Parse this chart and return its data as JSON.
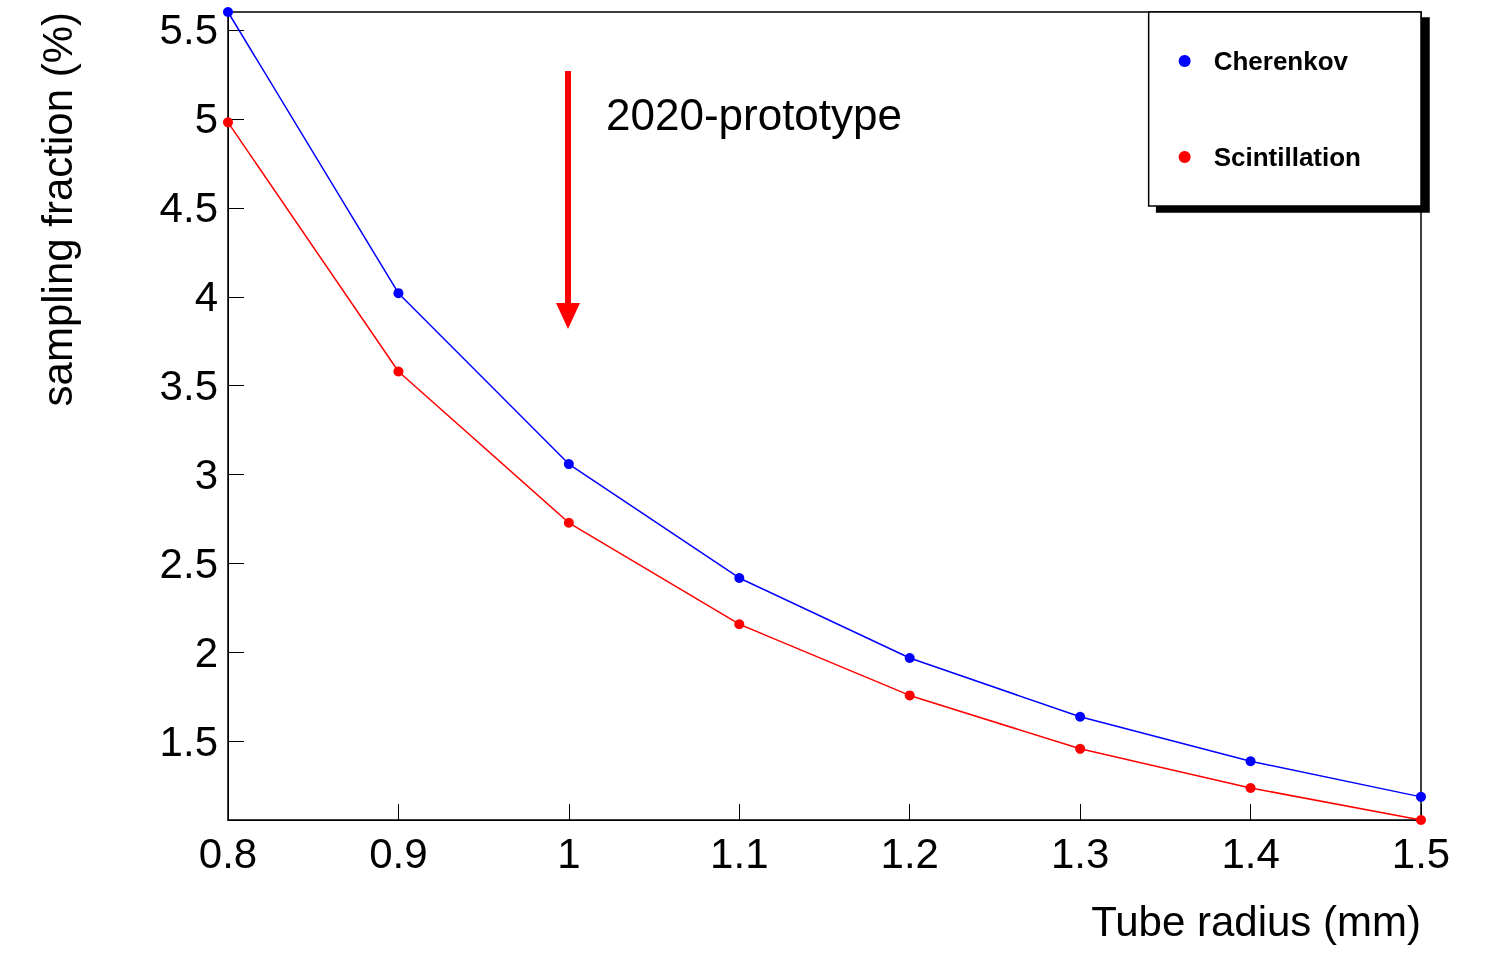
{
  "chart_data": {
    "type": "line",
    "xlabel": "Tube radius (mm)",
    "ylabel": "sampling fraction (%)",
    "x": [
      0.8,
      0.9,
      1.0,
      1.1,
      1.2,
      1.3,
      1.4,
      1.5
    ],
    "series": [
      {
        "name": "Cherenkov",
        "color": "#0000ff",
        "values": [
          5.6,
          4.02,
          3.06,
          2.42,
          1.97,
          1.64,
          1.39,
          1.19
        ]
      },
      {
        "name": "Scintillation",
        "color": "#ff0000",
        "values": [
          4.98,
          3.58,
          2.73,
          2.16,
          1.76,
          1.46,
          1.24,
          1.06
        ]
      }
    ],
    "xlim": [
      0.8,
      1.5
    ],
    "xticks": [
      0.8,
      0.9,
      1,
      1.1,
      1.2,
      1.3,
      1.4,
      1.5
    ],
    "ylim": [
      1.06,
      5.6
    ],
    "yticks": [
      1.5,
      2,
      2.5,
      3,
      3.5,
      4,
      4.5,
      5,
      5.5
    ],
    "grid": false,
    "legend": "top right",
    "marker": "circle",
    "line_style": "solid",
    "annotations": [
      "2020-prototype"
    ]
  }
}
